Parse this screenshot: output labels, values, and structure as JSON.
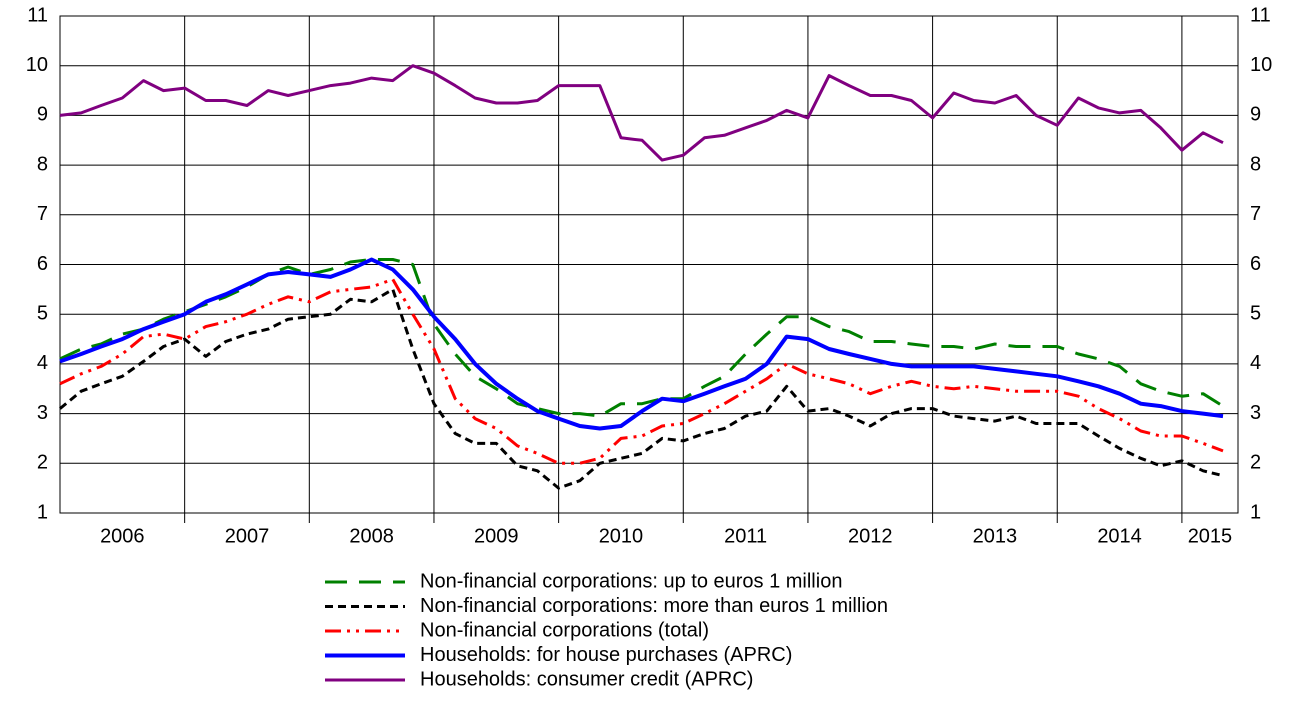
{
  "chart_data": {
    "type": "line",
    "x": [
      2006,
      2006.17,
      2006.33,
      2006.5,
      2006.67,
      2006.83,
      2007,
      2007.17,
      2007.33,
      2007.5,
      2007.67,
      2007.83,
      2008,
      2008.17,
      2008.33,
      2008.5,
      2008.67,
      2008.83,
      2009,
      2009.17,
      2009.33,
      2009.5,
      2009.67,
      2009.83,
      2010,
      2010.17,
      2010.33,
      2010.5,
      2010.67,
      2010.83,
      2011,
      2011.17,
      2011.33,
      2011.5,
      2011.67,
      2011.83,
      2012,
      2012.17,
      2012.33,
      2012.5,
      2012.67,
      2012.83,
      2013,
      2013.17,
      2013.33,
      2013.5,
      2013.67,
      2013.83,
      2014,
      2014.17,
      2014.33,
      2014.5,
      2014.67,
      2014.83,
      2015,
      2015.17,
      2015.33
    ],
    "series": [
      {
        "name": "Non-financial corporations: up to euros 1 million",
        "color": "#008000",
        "dash": "22 12",
        "width": 3,
        "values": [
          4.1,
          4.3,
          4.4,
          4.6,
          4.7,
          4.9,
          5.05,
          5.2,
          5.35,
          5.55,
          5.8,
          5.95,
          5.8,
          5.9,
          6.05,
          6.1,
          6.1,
          6.0,
          4.8,
          4.2,
          3.75,
          3.5,
          3.2,
          3.1,
          3.0,
          3.0,
          2.95,
          3.2,
          3.2,
          3.3,
          3.3,
          3.55,
          3.75,
          4.2,
          4.6,
          4.95,
          4.95,
          4.75,
          4.65,
          4.45,
          4.45,
          4.4,
          4.35,
          4.35,
          4.3,
          4.4,
          4.35,
          4.35,
          4.35,
          4.2,
          4.1,
          3.95,
          3.6,
          3.45,
          3.35,
          3.4,
          3.15
        ]
      },
      {
        "name": "Non-financial corporations: more than euros 1 million",
        "color": "#000000",
        "dash": "8 5",
        "width": 3,
        "values": [
          3.1,
          3.45,
          3.6,
          3.75,
          4.05,
          4.35,
          4.5,
          4.15,
          4.45,
          4.6,
          4.7,
          4.9,
          4.95,
          5.0,
          5.3,
          5.25,
          5.5,
          4.3,
          3.2,
          2.6,
          2.4,
          2.4,
          1.95,
          1.85,
          1.5,
          1.65,
          2.0,
          2.1,
          2.2,
          2.5,
          2.45,
          2.6,
          2.7,
          2.95,
          3.05,
          3.55,
          3.05,
          3.1,
          2.95,
          2.75,
          3.0,
          3.1,
          3.1,
          2.95,
          2.9,
          2.85,
          2.95,
          2.8,
          2.8,
          2.8,
          2.55,
          2.3,
          2.1,
          1.95,
          2.05,
          1.85,
          1.75
        ]
      },
      {
        "name": "Non-financial corporations (total)",
        "color": "#ff0000",
        "dash": "16 6 3 6 3 6",
        "width": 3,
        "values": [
          3.6,
          3.8,
          3.95,
          4.2,
          4.55,
          4.6,
          4.5,
          4.75,
          4.85,
          5.0,
          5.2,
          5.35,
          5.25,
          5.45,
          5.5,
          5.55,
          5.7,
          5.0,
          4.3,
          3.3,
          2.9,
          2.7,
          2.35,
          2.2,
          2.0,
          2.0,
          2.1,
          2.5,
          2.55,
          2.75,
          2.8,
          3.0,
          3.2,
          3.45,
          3.7,
          4.0,
          3.8,
          3.7,
          3.6,
          3.4,
          3.55,
          3.65,
          3.55,
          3.5,
          3.55,
          3.5,
          3.45,
          3.45,
          3.45,
          3.35,
          3.1,
          2.9,
          2.65,
          2.55,
          2.55,
          2.4,
          2.25
        ]
      },
      {
        "name": "Households: for house purchases (APRC)",
        "color": "#0000ff",
        "dash": "none",
        "width": 4,
        "values": [
          4.05,
          4.2,
          4.35,
          4.5,
          4.7,
          4.85,
          5.0,
          5.25,
          5.4,
          5.6,
          5.8,
          5.85,
          5.8,
          5.75,
          5.9,
          6.1,
          5.9,
          5.5,
          4.95,
          4.5,
          4.0,
          3.6,
          3.3,
          3.05,
          2.9,
          2.75,
          2.7,
          2.75,
          3.05,
          3.3,
          3.25,
          3.4,
          3.55,
          3.7,
          4.0,
          4.55,
          4.5,
          4.3,
          4.2,
          4.1,
          4.0,
          3.95,
          3.95,
          3.95,
          3.95,
          3.9,
          3.85,
          3.8,
          3.75,
          3.65,
          3.55,
          3.4,
          3.2,
          3.15,
          3.05,
          3.0,
          2.95
        ]
      },
      {
        "name": "Households: consumer credit (APRC)",
        "color": "#800080",
        "dash": "none",
        "width": 3,
        "values": [
          9.0,
          9.05,
          9.2,
          9.35,
          9.7,
          9.5,
          9.55,
          9.3,
          9.3,
          9.2,
          9.5,
          9.4,
          9.5,
          9.6,
          9.65,
          9.75,
          9.7,
          10.0,
          9.85,
          9.6,
          9.35,
          9.25,
          9.25,
          9.3,
          9.6,
          9.6,
          9.6,
          8.55,
          8.5,
          8.1,
          8.2,
          8.55,
          8.6,
          8.75,
          8.9,
          9.1,
          8.95,
          9.8,
          9.6,
          9.4,
          9.4,
          9.3,
          8.95,
          9.45,
          9.3,
          9.25,
          9.4,
          9.0,
          8.8,
          9.35,
          9.15,
          9.05,
          9.1,
          8.75,
          8.3,
          8.65,
          8.45
        ]
      }
    ],
    "xlim": [
      2006,
      2015.45
    ],
    "xticks": [
      2006,
      2007,
      2008,
      2009,
      2010,
      2011,
      2012,
      2013,
      2014,
      2015
    ],
    "ylim": [
      1,
      11
    ],
    "yticks": [
      1,
      2,
      3,
      4,
      5,
      6,
      7,
      8,
      9,
      10,
      11
    ],
    "grid": true,
    "right_axis": true,
    "legend": "bottom"
  }
}
